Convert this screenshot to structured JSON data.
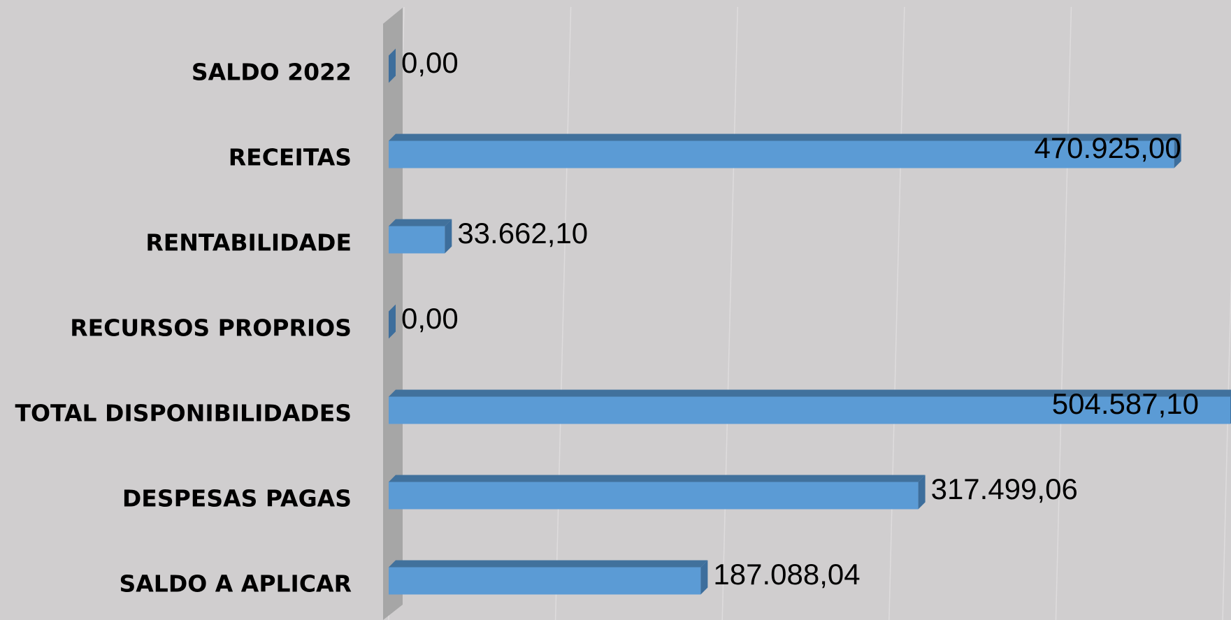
{
  "chart_data": {
    "type": "bar",
    "orientation": "horizontal",
    "categories": [
      "SALDO 2022",
      "RECEITAS",
      "RENTABILIDADE",
      "RECURSOS PROPRIOS",
      "TOTAL DISPONIBILIDADES",
      "DESPESAS PAGAS",
      "SALDO A APLICAR"
    ],
    "values": [
      0,
      470925,
      33662.1,
      0,
      504587.1,
      317499.06,
      187088.04
    ],
    "value_labels": [
      "0,00",
      "470.925,00",
      "33.662,10",
      "0,00",
      "504.587,10",
      "317.499,06",
      "187.088,04"
    ],
    "color": "#5b9bd5",
    "xlim": [
      0,
      505000
    ],
    "xticks": [
      0,
      100000,
      200000,
      300000,
      400000,
      500000
    ],
    "grid": true
  }
}
